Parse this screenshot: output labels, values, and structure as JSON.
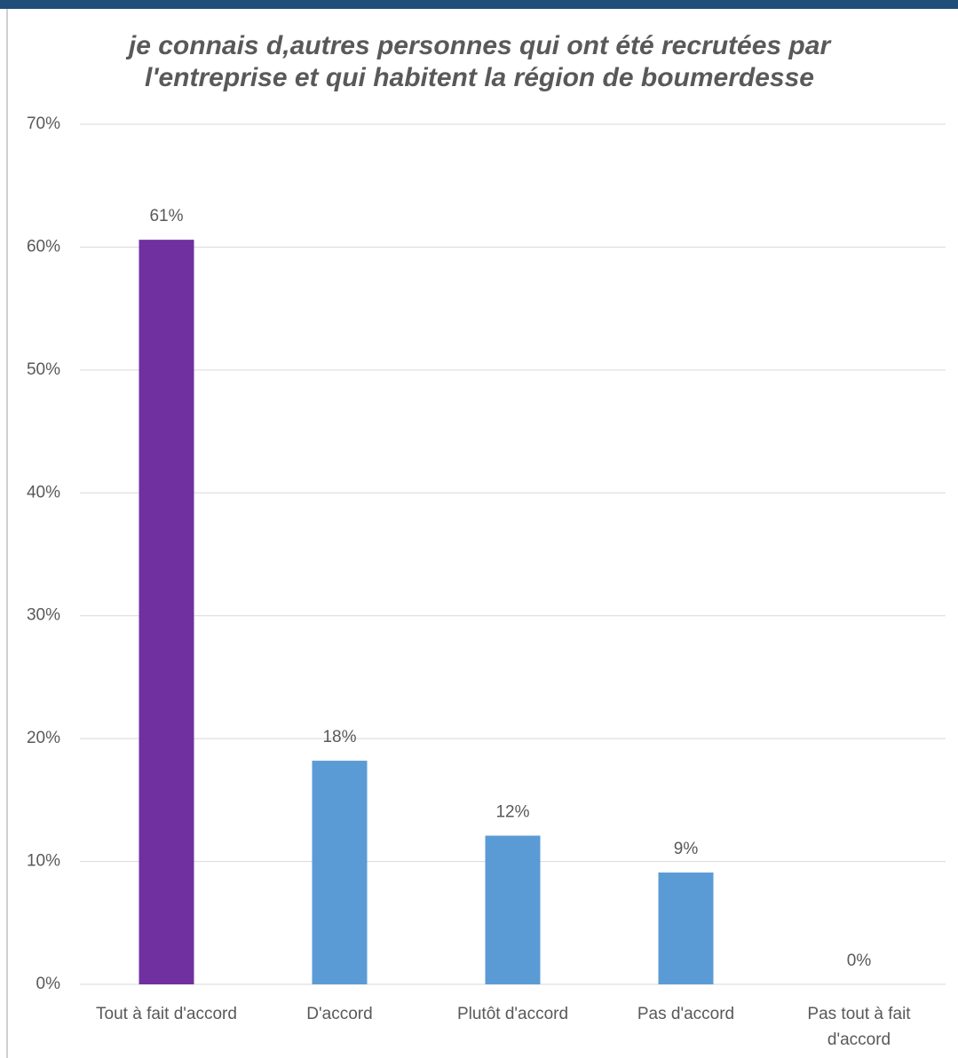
{
  "chart_data": {
    "type": "bar",
    "title": "je connais d,autres personnes qui ont été recrutées par l'entreprise et qui habitent la région de boumerdesse",
    "categories": [
      "Tout à fait d'accord",
      "D'accord",
      "Plutôt d'accord",
      "Pas d'accord",
      "Pas tout à fait d'accord"
    ],
    "values": [
      60.6,
      18.2,
      12.1,
      9.1,
      0
    ],
    "value_labels": [
      "61%",
      "18%",
      "12%",
      "9%",
      "0%"
    ],
    "colors": [
      "#7030a0",
      "#5b9bd5",
      "#5b9bd5",
      "#5b9bd5",
      "#5b9bd5"
    ],
    "ylim": [
      0,
      70
    ],
    "yticks": [
      {
        "value": 0,
        "label": "0%"
      },
      {
        "value": 10,
        "label": "10%"
      },
      {
        "value": 20,
        "label": "20%"
      },
      {
        "value": 30,
        "label": "30%"
      },
      {
        "value": 40,
        "label": "40%"
      },
      {
        "value": 50,
        "label": "50%"
      },
      {
        "value": 60,
        "label": "60%"
      },
      {
        "value": 70,
        "label": "70%"
      }
    ],
    "grid": true
  }
}
